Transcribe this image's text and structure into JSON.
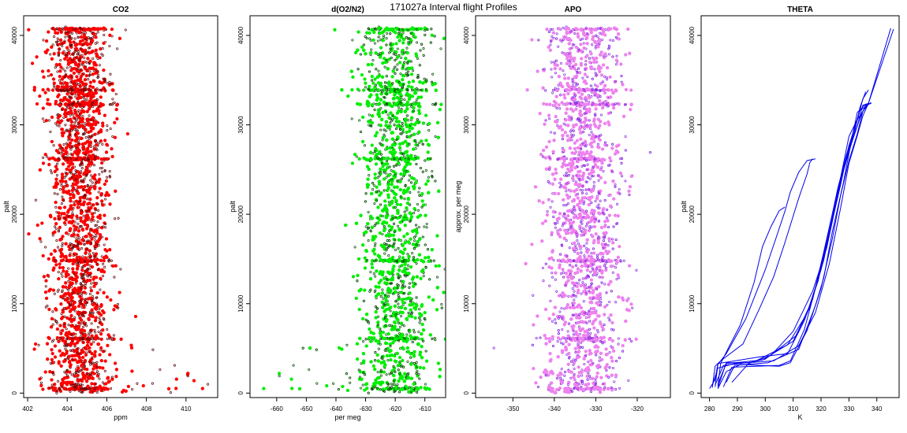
{
  "figure": {
    "title": "171027a   Interval flight Profiles"
  },
  "chart_data": [
    {
      "type": "scatter",
      "title": "CO2",
      "xlabel": "ppm",
      "ylabel": "palt",
      "xlim": [
        401.8,
        411.6
      ],
      "ylim": [
        -500,
        42200
      ],
      "xticks": [
        402,
        404,
        406,
        408,
        410
      ],
      "xtick_labels": [
        "402",
        "404",
        "406",
        "408",
        "410"
      ],
      "yticks": [
        0,
        10000,
        20000,
        30000,
        40000
      ],
      "ytick_labels": [
        "0",
        "10000",
        "20000",
        "30000",
        "40000"
      ],
      "colors": {
        "fill": "#ff0000",
        "edge": "#5a0000"
      },
      "grid": false,
      "summary": {
        "center_x": 404.6,
        "spread_x": 0.75,
        "dense_x_range": [
          403.2,
          406.5
        ],
        "level_bands_y": [
          500,
          6100,
          14800,
          26200,
          32300,
          33900,
          40700
        ],
        "low_altitude_outliers_x_max": 411.2
      }
    },
    {
      "type": "scatter",
      "title": "d(O2/N2)",
      "xlabel": "per meg",
      "ylabel": "palt",
      "xlim": [
        -669,
        -603
      ],
      "ylim": [
        -500,
        42200
      ],
      "xticks": [
        -660,
        -650,
        -640,
        -630,
        -620,
        -610
      ],
      "xtick_labels": [
        "-660",
        "-650",
        "-640",
        "-630",
        "-620",
        "-610"
      ],
      "yticks": [
        0,
        10000,
        20000,
        30000,
        40000
      ],
      "ytick_labels": [
        "0",
        "10000",
        "20000",
        "30000",
        "40000"
      ],
      "colors": {
        "fill": "#00ee00",
        "edge": "#004d00"
      },
      "grid": false,
      "summary": {
        "center_x": -620,
        "spread_x": 6,
        "dense_x_range": [
          -640,
          -606
        ],
        "level_bands_y": [
          500,
          6100,
          14800,
          26200,
          32300,
          33900,
          40700
        ],
        "low_altitude_outliers_x_min": -667
      }
    },
    {
      "type": "scatter",
      "title": "APO",
      "xlabel": "",
      "ylabel": "approx. per meg",
      "xlim": [
        -359,
        -312
      ],
      "ylim": [
        -500,
        42200
      ],
      "xticks": [
        -350,
        -340,
        -330,
        -320
      ],
      "xtick_labels": [
        "-350",
        "-340",
        "-330",
        "-320"
      ],
      "yticks": [
        0,
        10000,
        20000,
        30000,
        40000
      ],
      "ytick_labels": [
        "0",
        "10000",
        "20000",
        "30000",
        "40000"
      ],
      "colors": {
        "fill": "#ee82ee",
        "edge": "#8a2be2"
      },
      "grid": false,
      "summary": {
        "center_x": -333,
        "spread_x": 4.5,
        "dense_x_range": [
          -345,
          -320
        ],
        "level_bands_y": [
          500,
          6100,
          14800,
          26200,
          32300,
          33900,
          40700
        ]
      }
    },
    {
      "type": "line",
      "title": "THETA",
      "xlabel": "K",
      "ylabel": "palt",
      "xlim": [
        277,
        348
      ],
      "ylim": [
        -500,
        42200
      ],
      "xticks": [
        280,
        290,
        300,
        310,
        320,
        330,
        340
      ],
      "xtick_labels": [
        "280",
        "290",
        "300",
        "310",
        "320",
        "330",
        "340"
      ],
      "yticks": [
        0,
        10000,
        20000,
        30000,
        40000
      ],
      "ytick_labels": [
        "0",
        "10000",
        "20000",
        "30000",
        "40000"
      ],
      "colors": {
        "line": "#0000ee"
      },
      "grid": false,
      "series": [
        {
          "points": [
            [
              281,
              600
            ],
            [
              282,
              3000
            ],
            [
              284,
              3600
            ],
            [
              292,
              5500
            ],
            [
              298,
              9500
            ],
            [
              303,
              13000
            ],
            [
              307,
              16800
            ],
            [
              310,
              19800
            ],
            [
              312,
              21800
            ],
            [
              315,
              24500
            ],
            [
              316,
              25800
            ],
            [
              317,
              26200
            ]
          ]
        },
        {
          "points": [
            [
              282,
              700
            ],
            [
              283,
              3200
            ],
            [
              286,
              4400
            ],
            [
              293,
              8300
            ],
            [
              300,
              13800
            ],
            [
              304,
              17500
            ],
            [
              307,
              20300
            ],
            [
              309,
              22500
            ],
            [
              312,
              24700
            ],
            [
              315,
              26000
            ],
            [
              318,
              26200
            ]
          ]
        },
        {
          "points": [
            [
              283,
              800
            ],
            [
              284,
              3300
            ],
            [
              287,
              5200
            ],
            [
              291,
              7600
            ],
            [
              296,
              12400
            ],
            [
              299,
              16400
            ],
            [
              302,
              18600
            ],
            [
              305,
              20400
            ],
            [
              307,
              20800
            ]
          ]
        },
        {
          "points": [
            [
              281,
              800
            ],
            [
              283,
              2800
            ],
            [
              289,
              3300
            ],
            [
              303,
              3600
            ],
            [
              312,
              5300
            ],
            [
              318,
              9000
            ],
            [
              323,
              14500
            ],
            [
              327,
              20700
            ],
            [
              330,
              25700
            ],
            [
              333,
              28800
            ],
            [
              335,
              31000
            ],
            [
              337,
              32400
            ],
            [
              346,
              40700
            ]
          ]
        },
        {
          "points": [
            [
              283,
              1000
            ],
            [
              286,
              3300
            ],
            [
              299,
              3700
            ],
            [
              310,
              5800
            ],
            [
              316,
              9600
            ],
            [
              321,
              14900
            ],
            [
              325,
              21000
            ],
            [
              328,
              25600
            ],
            [
              330,
              28700
            ],
            [
              333,
              30600
            ],
            [
              337,
              32400
            ],
            [
              345,
              40800
            ]
          ]
        },
        {
          "points": [
            [
              282,
              900
            ],
            [
              285,
              3100
            ],
            [
              296,
              3500
            ],
            [
              308,
              5400
            ],
            [
              315,
              8900
            ],
            [
              320,
              13800
            ],
            [
              324,
              19200
            ],
            [
              327,
              23800
            ],
            [
              330,
              27200
            ],
            [
              333,
              29900
            ],
            [
              335,
              32200
            ],
            [
              337,
              32400
            ]
          ]
        },
        {
          "points": [
            [
              288,
              1200
            ],
            [
              294,
              3300
            ],
            [
              302,
              4200
            ],
            [
              310,
              6900
            ],
            [
              317,
              11400
            ],
            [
              322,
              16200
            ],
            [
              325,
              20600
            ],
            [
              328,
              24800
            ],
            [
              331,
              28000
            ],
            [
              334,
              30800
            ],
            [
              336,
              32200
            ],
            [
              338,
              32400
            ]
          ]
        },
        {
          "points": [
            [
              285,
              700
            ],
            [
              288,
              2900
            ],
            [
              305,
              3100
            ],
            [
              309,
              3600
            ],
            [
              314,
              7100
            ],
            [
              319,
              12900
            ],
            [
              323,
              17900
            ],
            [
              327,
              23300
            ],
            [
              330,
              27700
            ],
            [
              333,
              30500
            ],
            [
              335,
              32900
            ],
            [
              337,
              33900
            ]
          ]
        },
        {
          "points": [
            [
              283,
              600
            ],
            [
              286,
              3400
            ],
            [
              294,
              3400
            ],
            [
              300,
              3800
            ],
            [
              311,
              6400
            ],
            [
              317,
              10500
            ],
            [
              321,
              15800
            ],
            [
              325,
              21400
            ],
            [
              329,
              26500
            ],
            [
              332,
              29700
            ],
            [
              334,
              31600
            ],
            [
              338,
              32500
            ]
          ]
        },
        {
          "points": [
            [
              280,
              500
            ],
            [
              282,
              1500
            ],
            [
              283,
              3300
            ],
            [
              299,
              4100
            ],
            [
              308,
              4400
            ],
            [
              314,
              8100
            ],
            [
              319,
              12600
            ],
            [
              323,
              18400
            ],
            [
              326,
              22900
            ],
            [
              329,
              26400
            ],
            [
              332,
              29200
            ],
            [
              334,
              32000
            ],
            [
              336,
              33700
            ]
          ]
        },
        {
          "points": [
            [
              286,
              1200
            ],
            [
              289,
              3100
            ],
            [
              301,
              3400
            ],
            [
              312,
              4900
            ],
            [
              318,
              9800
            ],
            [
              321,
              12900
            ],
            [
              324,
              18000
            ],
            [
              328,
              23500
            ],
            [
              331,
              28400
            ],
            [
              333,
              31400
            ],
            [
              336,
              32300
            ],
            [
              338,
              32400
            ]
          ]
        },
        {
          "points": [
            [
              283,
              500
            ],
            [
              286,
              2400
            ],
            [
              291,
              3200
            ],
            [
              305,
              3000
            ],
            [
              309,
              3400
            ],
            [
              315,
              7000
            ],
            [
              320,
              11700
            ],
            [
              324,
              17200
            ],
            [
              327,
              22100
            ],
            [
              330,
              26000
            ],
            [
              333,
              29000
            ],
            [
              335,
              31500
            ],
            [
              337,
              32300
            ]
          ]
        }
      ]
    }
  ]
}
